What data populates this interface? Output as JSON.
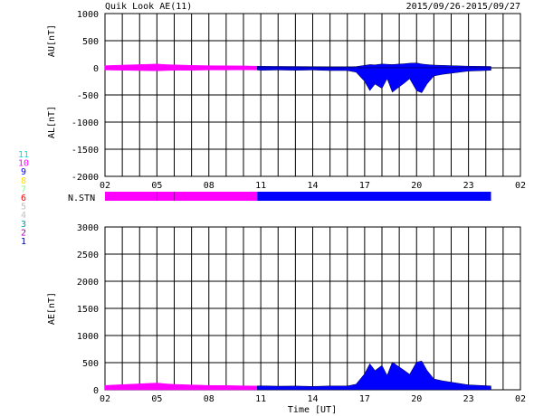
{
  "header": {
    "title": "Quik Look AE(11)",
    "date_range": "2015/09/26-2015/09/27"
  },
  "station_legend": {
    "items": [
      {
        "label": "11",
        "color": "#00e0e0"
      },
      {
        "label": "10",
        "color": "#ff00ff"
      },
      {
        "label": "9",
        "color": "#0000ff"
      },
      {
        "label": "8",
        "color": "#ffe000"
      },
      {
        "label": "7",
        "color": "#80ff80"
      },
      {
        "label": "6",
        "color": "#ff0000"
      },
      {
        "label": "5",
        "color": "#c0c0c0"
      },
      {
        "label": "4",
        "color": "#c0c0c0"
      },
      {
        "label": "3",
        "color": "#00a0a0"
      },
      {
        "label": "2",
        "color": "#a000a0"
      },
      {
        "label": "1",
        "color": "#0000a0"
      }
    ]
  },
  "nstn": {
    "label": "N.STN",
    "segments": [
      {
        "from": 2,
        "to": 5,
        "count": 10,
        "color": "#ff00ff"
      },
      {
        "from": 5,
        "to": 6,
        "count": 10,
        "color": "#ff00ff"
      },
      {
        "from": 6,
        "to": 10.8,
        "count": 10,
        "color": "#ff00ff"
      },
      {
        "from": 10.8,
        "to": 24.3,
        "count": 9,
        "color": "#0000ff"
      }
    ]
  },
  "chart_data": [
    {
      "type": "area",
      "ylabel_top": "AU[nT]",
      "ylabel_bottom": "AL[nT]",
      "ylim": [
        -2000,
        1000
      ],
      "yticks": [
        "1000",
        "500",
        "0",
        "-500",
        "-1000",
        "-1500",
        "-2000"
      ],
      "xlim": [
        2,
        26
      ],
      "xticks": [
        "02",
        "05",
        "08",
        "11",
        "14",
        "17",
        "20",
        "23",
        "02"
      ],
      "colors": {
        "before": "#ff00ff",
        "after": "#0000ff"
      },
      "switch_hour": 10.8,
      "series": [
        {
          "name": "AU",
          "x": [
            2,
            3,
            4,
            5,
            5.5,
            6,
            7,
            8,
            9,
            10,
            10.8,
            11,
            12,
            13,
            14,
            15,
            16,
            16.5,
            17,
            17.3,
            17.6,
            18,
            18.3,
            18.6,
            19,
            19.3,
            19.6,
            20,
            20.3,
            20.6,
            21,
            21.5,
            22,
            22.5,
            23,
            23.5,
            24.3
          ],
          "values": [
            40,
            50,
            60,
            70,
            60,
            55,
            45,
            40,
            38,
            35,
            30,
            28,
            26,
            24,
            22,
            20,
            20,
            22,
            45,
            60,
            55,
            70,
            65,
            60,
            70,
            75,
            85,
            90,
            70,
            60,
            50,
            45,
            40,
            35,
            30,
            28,
            25
          ]
        },
        {
          "name": "AL",
          "x": [
            2,
            3,
            4,
            5,
            5.5,
            6,
            7,
            8,
            9,
            10,
            10.8,
            11,
            12,
            13,
            14,
            15,
            16,
            16.5,
            17,
            17.3,
            17.6,
            18,
            18.3,
            18.6,
            19,
            19.3,
            19.6,
            20,
            20.3,
            20.6,
            21,
            21.5,
            22,
            22.5,
            23,
            23.5,
            24.3
          ],
          "values": [
            -40,
            -45,
            -50,
            -55,
            -50,
            -45,
            -45,
            -40,
            -40,
            -38,
            -40,
            -45,
            -40,
            -45,
            -40,
            -50,
            -50,
            -80,
            -250,
            -420,
            -300,
            -380,
            -200,
            -450,
            -350,
            -280,
            -200,
            -420,
            -460,
            -300,
            -150,
            -120,
            -100,
            -80,
            -60,
            -55,
            -45
          ]
        }
      ]
    },
    {
      "type": "area",
      "ylabel": "AE[nT]",
      "xlabel": "Time [UT]",
      "ylim": [
        0,
        3000
      ],
      "yticks": [
        "3000",
        "2500",
        "2000",
        "1500",
        "1000",
        "500",
        "0"
      ],
      "xlim": [
        2,
        26
      ],
      "xticks": [
        "02",
        "05",
        "08",
        "11",
        "14",
        "17",
        "20",
        "23",
        "02"
      ],
      "colors": {
        "before": "#ff00ff",
        "after": "#0000ff"
      },
      "switch_hour": 10.8,
      "series": [
        {
          "name": "AE",
          "x": [
            2,
            3,
            4,
            5,
            5.5,
            6,
            7,
            8,
            9,
            10,
            10.8,
            11,
            12,
            13,
            14,
            15,
            16,
            16.5,
            17,
            17.3,
            17.6,
            18,
            18.3,
            18.6,
            19,
            19.3,
            19.6,
            20,
            20.3,
            20.6,
            21,
            21.5,
            22,
            22.5,
            23,
            23.5,
            24.3
          ],
          "values": [
            80,
            95,
            110,
            125,
            110,
            100,
            90,
            80,
            78,
            73,
            70,
            73,
            66,
            69,
            62,
            70,
            70,
            102,
            295,
            480,
            355,
            450,
            265,
            510,
            420,
            355,
            285,
            510,
            530,
            360,
            200,
            165,
            140,
            115,
            90,
            83,
            70
          ]
        }
      ]
    }
  ]
}
